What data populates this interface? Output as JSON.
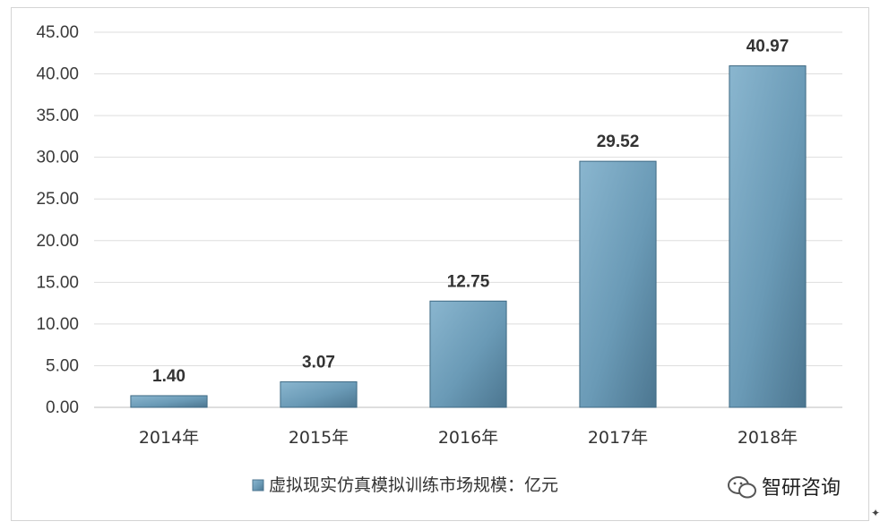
{
  "chart_data": {
    "type": "bar",
    "categories": [
      "2014年",
      "2015年",
      "2016年",
      "2017年",
      "2018年"
    ],
    "series": [
      {
        "name": "虚拟现实仿真模拟训练市场规模：亿元",
        "values": [
          1.4,
          3.07,
          12.75,
          29.52,
          40.97
        ]
      }
    ],
    "value_labels": [
      "1.40",
      "3.07",
      "12.75",
      "29.52",
      "40.97"
    ],
    "yticks": [
      "0.00",
      "5.00",
      "10.00",
      "15.00",
      "20.00",
      "25.00",
      "30.00",
      "35.00",
      "40.00",
      "45.00"
    ],
    "ylim": [
      0,
      45
    ],
    "grid": true,
    "legend_position": "bottom",
    "bar_color": "#6f9fba"
  },
  "watermark": {
    "text": "智研咨询",
    "icon": "wechat-icon"
  }
}
